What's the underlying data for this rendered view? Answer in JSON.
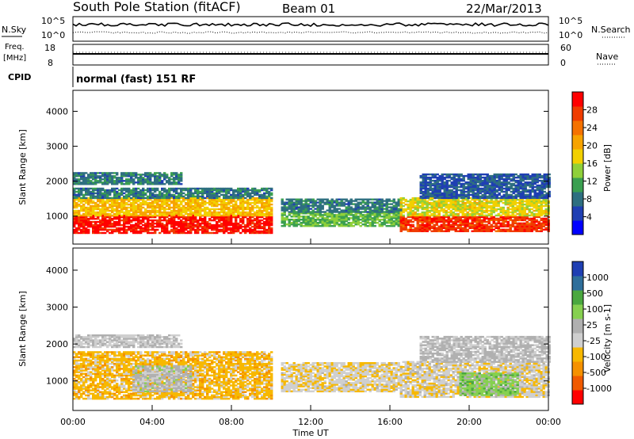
{
  "header": {
    "station": "South Pole Station (fitACF)",
    "beam": "Beam 01",
    "date": "22/Mar/2013"
  },
  "top_panels": {
    "nsky_label": "N.Sky",
    "nsky_ticks": [
      "10^5",
      "10^0"
    ],
    "nsearch_label": "N.Search",
    "nsearch_ticks": [
      "10^5",
      "10^0"
    ],
    "freq_label_1": "Freq.",
    "freq_label_2": "[MHz]",
    "freq_ticks": [
      "18",
      "8"
    ],
    "nave_label": "Nave",
    "nave_ticks": [
      "60",
      "0"
    ],
    "cpid_label": "CPID",
    "cpid_value": "normal (fast) 151 RF"
  },
  "colors": {
    "power_scale": [
      "#0000ff",
      "#1f3fb3",
      "#2e6f80",
      "#3a9f50",
      "#8fd03a",
      "#f2d000",
      "#f7a300",
      "#f57200",
      "#f03c00",
      "#ff0000"
    ],
    "velocity_scale": [
      "#ff0000",
      "#f05a00",
      "#f59100",
      "#f7b800",
      "#cfcfcf",
      "#b0b0b0",
      "#86d050",
      "#4aa83f",
      "#2f6f9b",
      "#1f3fb3"
    ]
  },
  "chart_data": [
    {
      "type": "heatmap",
      "panel": "power",
      "ylabel": "Slant Range [km]",
      "xlabel": "",
      "x_ticks": [
        "00:00",
        "04:00",
        "08:00",
        "12:00",
        "16:00",
        "20:00",
        "00:00"
      ],
      "y_ticks": [
        1000,
        2000,
        3000,
        4000
      ],
      "ylim": [
        200,
        4600
      ],
      "xlim_hours": [
        0,
        24
      ],
      "colorbar": {
        "label": "Power [dB]",
        "ticks": [
          "28",
          "24",
          "20",
          "16",
          "12",
          "8",
          "4"
        ],
        "range": [
          0,
          30
        ]
      },
      "bands": [
        {
          "t0": 0,
          "t1": 10.0,
          "r0": 500,
          "r1": 1000,
          "value": 28
        },
        {
          "t0": 0,
          "t1": 10.0,
          "r0": 1000,
          "r1": 1500,
          "value": 18
        },
        {
          "t0": 0,
          "t1": 10.0,
          "r0": 1500,
          "r1": 1800,
          "value": 8
        },
        {
          "t0": 0,
          "t1": 5.5,
          "r0": 1900,
          "r1": 2250,
          "value": 8
        },
        {
          "t0": 10.5,
          "t1": 16.5,
          "r0": 700,
          "r1": 1100,
          "value": 12
        },
        {
          "t0": 10.5,
          "t1": 16.5,
          "r0": 1100,
          "r1": 1500,
          "value": 8
        },
        {
          "t0": 16.5,
          "t1": 24,
          "r0": 550,
          "r1": 1000,
          "value": 26
        },
        {
          "t0": 16.5,
          "t1": 24,
          "r0": 1000,
          "r1": 1500,
          "value": 16
        },
        {
          "t0": 17.5,
          "t1": 24,
          "r0": 1500,
          "r1": 2200,
          "value": 6
        }
      ]
    },
    {
      "type": "heatmap",
      "panel": "velocity",
      "ylabel": "Slant Range [km]",
      "xlabel": "Time UT",
      "x_ticks": [
        "00:00",
        "04:00",
        "08:00",
        "12:00",
        "16:00",
        "20:00",
        "00:00"
      ],
      "y_ticks": [
        1000,
        2000,
        3000,
        4000
      ],
      "ylim": [
        200,
        4600
      ],
      "xlim_hours": [
        0,
        24
      ],
      "colorbar": {
        "label": "Velocity [m s-1]",
        "ticks": [
          "1000",
          "500",
          "100",
          "25",
          "-25",
          "-100",
          "-500",
          "-1000"
        ],
        "range": [
          -1000,
          1000
        ]
      },
      "bands": [
        {
          "t0": 0,
          "t1": 10.0,
          "r0": 500,
          "r1": 1800,
          "value": -300
        },
        {
          "t0": 3.0,
          "t1": 6.0,
          "r0": 700,
          "r1": 1400,
          "value": 80
        },
        {
          "t0": 0,
          "t1": 5.5,
          "r0": 1900,
          "r1": 2250,
          "value": 0
        },
        {
          "t0": 10.5,
          "t1": 16.5,
          "r0": 700,
          "r1": 1500,
          "value": -150
        },
        {
          "t0": 16.5,
          "t1": 24,
          "r0": 550,
          "r1": 1500,
          "value": -120
        },
        {
          "t0": 19.5,
          "t1": 22.5,
          "r0": 600,
          "r1": 1200,
          "value": 300
        },
        {
          "t0": 17.5,
          "t1": 24,
          "r0": 1500,
          "r1": 2200,
          "value": 40
        }
      ]
    }
  ]
}
